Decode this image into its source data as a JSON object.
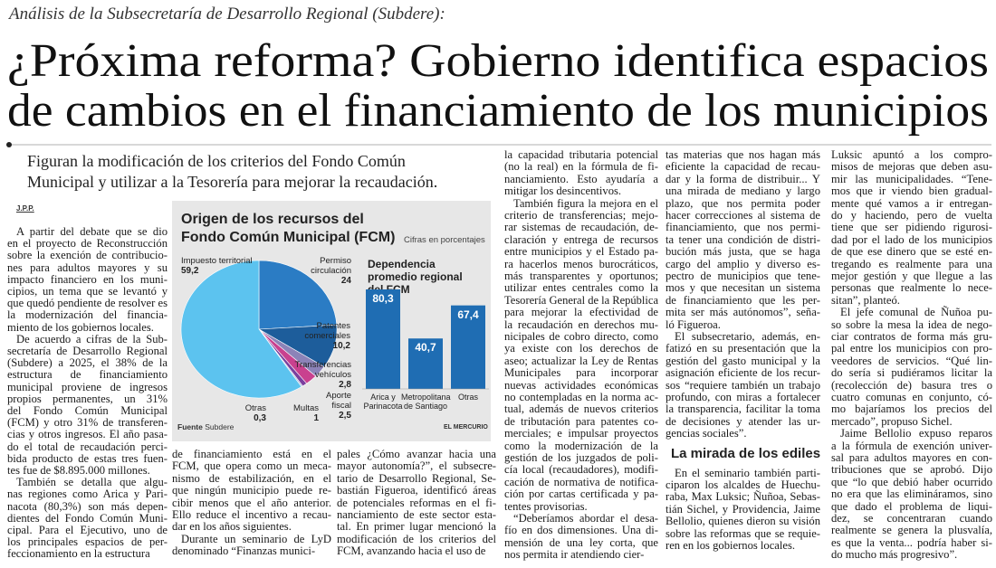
{
  "header": {
    "kicker": "Análisis de la Subsecretaría de Desarrollo Regional (Subdere):",
    "headline": [
      "¿Próxima reforma? Gobierno identifica espacios",
      "de cambios en el financiamiento de los municipios"
    ],
    "deck": [
      "Figuran la modificación de los criterios del Fondo Común",
      "Municipal y utilizar a la Tesorería para mejorar la recaudación."
    ],
    "byline": "J.P.P."
  },
  "chart_data": [
    {
      "type": "pie",
      "title": "Origen de los recursos del Fondo Común Municipal (FCM)",
      "subtitle": "Cifras en porcentajes",
      "categories": [
        "Permiso circulación",
        "Patentes comerciales",
        "Transferencias vehículos",
        "Aporte fiscal",
        "Multas",
        "Otras",
        "Impuesto territorial"
      ],
      "values": [
        24,
        10.2,
        2.8,
        2.5,
        1,
        0.3,
        59.2
      ],
      "value_labels": [
        "24",
        "10,2",
        "2,8",
        "2,5",
        "1",
        "0,3",
        "59,2"
      ],
      "colors": [
        "#2b7cc4",
        "#1d5d9b",
        "#8c83b8",
        "#c9418f",
        "#7b3f9e",
        "#aab8d8",
        "#5cc3ef"
      ]
    },
    {
      "type": "bar",
      "title": "Dependencia promedio regional del FCM",
      "categories": [
        "Arica y Parinacota",
        "Metropolitana de Santiago",
        "Otras"
      ],
      "values": [
        80.3,
        40.7,
        67.4
      ],
      "value_labels": [
        "80,3",
        "40,7",
        "67,4"
      ],
      "color": "#1f6db3"
    }
  ],
  "chart_source": {
    "label": "Fuente",
    "text": "Subdere"
  },
  "chart_credit": "EL MERCURIO",
  "columns": [
    [
      {
        "lines": [
          "A partir del debate que se dio",
          "en el proyecto de Reconstrucción",
          "sobre la exención de contribucio-",
          "nes para adultos mayores y su",
          "impacto financiero en los muni-",
          "cipios, un tema que se levantó y",
          "que quedó pendiente de resolver es",
          "la modernización del financia-",
          "miento de los gobiernos locales."
        ]
      },
      {
        "lines": [
          "De acuerdo a cifras de la Sub-",
          "secretaría de Desarrollo Regional",
          "(Subdere) a 2025, el 38% de la",
          "estructura de financiamiento",
          "municipal proviene de ingresos",
          "propios permanentes, un 31%",
          "del Fondo Común Municipal",
          "(FCM) y otro 31% de transferen-",
          "cias y otros ingresos. El año pasa-",
          "do el total de recaudación perci-",
          "bida producto de estas tres fuen-",
          "tes fue de $8.895.000 millones."
        ]
      },
      {
        "lines": [
          "También se detalla que algu-",
          "nas regiones como Arica y Pari-",
          "nacota (80,3%) son más depen-",
          "dientes del Fondo Común Muni-",
          "cipal. Para el Ejecutivo, uno de",
          "los principales espacios de per-",
          "feccionamiento en la estructura"
        ]
      }
    ],
    [
      {
        "lines": [
          "de financiamiento está en el",
          "FCM, que opera como un meca-",
          "nismo de estabilización, en el",
          "que ningún municipio puede re-",
          "cibir menos que el año anterior.",
          "Ello reduce el incentivo a recau-",
          "dar en los años siguientes."
        ]
      },
      {
        "lines": [
          "Durante un seminario de LyD",
          "denominado “Finanzas munici-"
        ]
      }
    ],
    [
      {
        "lines": [
          "pales ¿Cómo avanzar hacia una",
          "mayor autonomía?”, el subsecre-",
          "tario de Desarrollo Regional, Se-",
          "bastián Figueroa, identificó áreas",
          "de potenciales reformas en el fi-",
          "nanciamiento de este sector esta-",
          "tal. En primer lugar mencionó la",
          "modificación de los criterios del",
          "FCM, avanzando hacia el uso de"
        ]
      }
    ],
    [
      {
        "lines": [
          "la capacidad tributaria potencial",
          "(no la real) en la fórmula de fi-",
          "nanciamiento. Esto ayudaría a",
          "mitigar los desincentivos."
        ]
      },
      {
        "lines": [
          "También figura la mejora en el",
          "criterio de transferencias; mejo-",
          "rar sistemas de recaudación, de-",
          "claración y entrega de recursos",
          "entre municipios y el Estado pa-",
          "ra hacerlos menos burocráticos,",
          "más transparentes y oportunos;",
          "utilizar entes centrales como la",
          "Tesorería General de la República",
          "para mejorar la efectividad de",
          "la recaudación en derechos mu-",
          "nicipales de cobro directo, como",
          "ya existe con los derechos de",
          "aseo; actualizar la Ley de Rentas",
          "Municipales para incorporar",
          "nuevas actividades económicas",
          "no contempladas en la norma ac-",
          "tual, además de nuevos criterios",
          "de tributación para patentes co-",
          "merciales; e impulsar proyectos",
          "como la modernización de la",
          "gestión de los juzgados de poli-",
          "cía local (recaudadores), modifi-",
          "cación de normativa de notifica-",
          "ción por cartas certificada y pa-",
          "tentes provisorias."
        ]
      },
      {
        "lines": [
          "“Deberíamos abordar el desa-",
          "fío en dos dimensiones. Una di-",
          "mensión de una ley corta, que",
          "nos permita ir atendiendo cier-"
        ]
      }
    ],
    [
      {
        "lines": [
          "tas materias que nos hagan más",
          "eficiente la capacidad de recau-",
          "dar y la forma de distribuir... Y",
          "una mirada de mediano y largo",
          "plazo, que nos permita poder",
          "hacer correcciones al sistema de",
          "financiamiento, que nos permi-",
          "ta tener una condición de distri-",
          "bución más justa, que se haga",
          "cargo del amplio y diverso es-",
          "pectro de municipios que tene-",
          "mos y que necesitan un sistema",
          "de financiamiento que les per-",
          "mita ser más autónomos”, seña-",
          "ló Figueroa."
        ]
      },
      {
        "lines": [
          "El subsecretario, además, en-",
          "fatizó en su presentación que la",
          "gestión del gasto municipal y la",
          "asignación eficiente de los recur-",
          "sos “requiere también un trabajo",
          "profundo, con miras a fortalecer",
          "la transparencia, facilitar la toma",
          "de decisiones y atender las ur-",
          "gencias sociales”."
        ]
      },
      {
        "heading": "La mirada de los ediles"
      },
      {
        "lines": [
          "En el seminario también parti-",
          "ciparon los alcaldes de Huechu-",
          "raba, Max Luksic; Ñuñoa, Sebas-",
          "tián Sichel, y Providencia, Jaime",
          "Bellolio, quienes dieron su visión",
          "sobre las reformas que se requie-",
          "ren en los gobiernos locales."
        ]
      }
    ],
    [
      {
        "lines": [
          "Luksic apuntó a los compro-",
          "misos de mejoras que deben asu-",
          "mir las municipalidades. “Tene-",
          "mos que ir viendo bien gradual-",
          "mente qué vamos a ir entregan-",
          "do y haciendo, pero de vuelta",
          "tiene que ser pidiendo rigurosi-",
          "dad por el lado de los municipios",
          "de que ese dinero que se esté en-",
          "tregando es realmente para una",
          "mejor gestión y que llegue a las",
          "personas que realmente lo nece-",
          "sitan”, planteó."
        ]
      },
      {
        "lines": [
          "El jefe comunal de Ñuñoa pu-",
          "so sobre la mesa la idea de nego-",
          "ciar contratos de forma más gru-",
          "pal entre los municipios con pro-",
          "veedores de servicios. “Qué lin-",
          "do sería si pudiéramos licitar la",
          "(recolección de) basura tres o",
          "cuatro comunas en conjunto, có-",
          "mo bajaríamos los precios del",
          "mercado”, propuso Sichel."
        ]
      },
      {
        "lines": [
          "Jaime Bellolio expuso reparos",
          "a la fórmula de exención univer-",
          "sal para adultos mayores en con-",
          "tribuciones que se aprobó. Dijo",
          "que “lo que debió haber ocurrido",
          "no era que las elimináramos, sino",
          "que dado el problema de liqui-",
          "dez, se concentraran cuando",
          "realmente se genera la plusvalía,",
          "es que la venta... podría haber si-",
          "do mucho más progresivo”."
        ]
      }
    ]
  ]
}
